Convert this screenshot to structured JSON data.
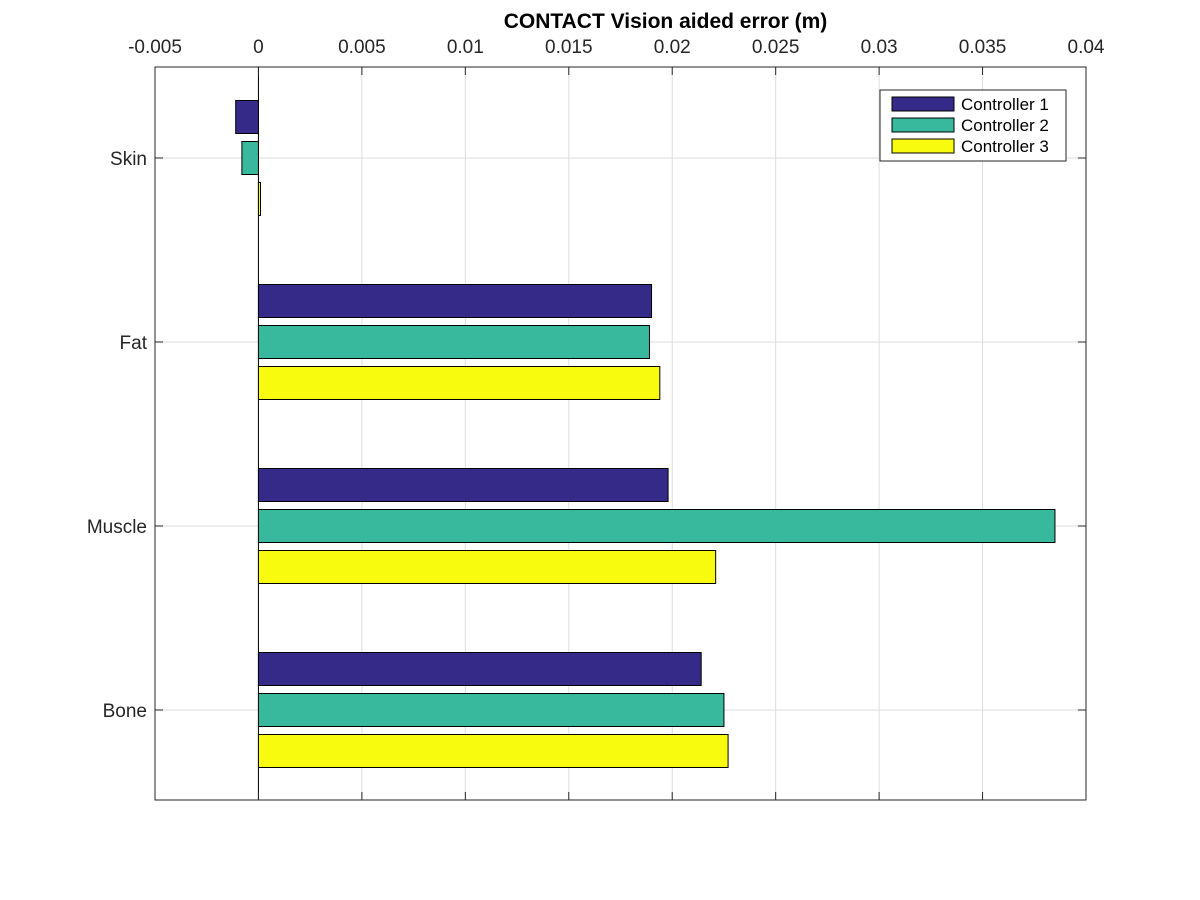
{
  "chart_data": {
    "type": "bar",
    "orientation": "horizontal",
    "title": "CONTACT Vision aided error (m)",
    "xlabel": "",
    "ylabel": "",
    "categories": [
      "Skin",
      "Fat",
      "Muscle",
      "Bone"
    ],
    "series": [
      {
        "name": "Controller 1",
        "color": "#352a87",
        "values": [
          -0.0011,
          0.019,
          0.0198,
          0.0214
        ]
      },
      {
        "name": "Controller 2",
        "color": "#38b99e",
        "values": [
          -0.0008,
          0.0189,
          0.0385,
          0.0225
        ]
      },
      {
        "name": "Controller 3",
        "color": "#f9fb0e",
        "values": [
          0.0001,
          0.0194,
          0.0221,
          0.0227
        ]
      }
    ],
    "xlim": [
      -0.005,
      0.04
    ],
    "xticks": [
      -0.005,
      0,
      0.005,
      0.01,
      0.015,
      0.02,
      0.025,
      0.03,
      0.035,
      0.04
    ],
    "xtick_labels": [
      "-0.005",
      "0",
      "0.005",
      "0.01",
      "0.015",
      "0.02",
      "0.025",
      "0.03",
      "0.035",
      "0.04"
    ],
    "x_axis_location": "top",
    "grid": true,
    "legend_position": "top-right"
  }
}
